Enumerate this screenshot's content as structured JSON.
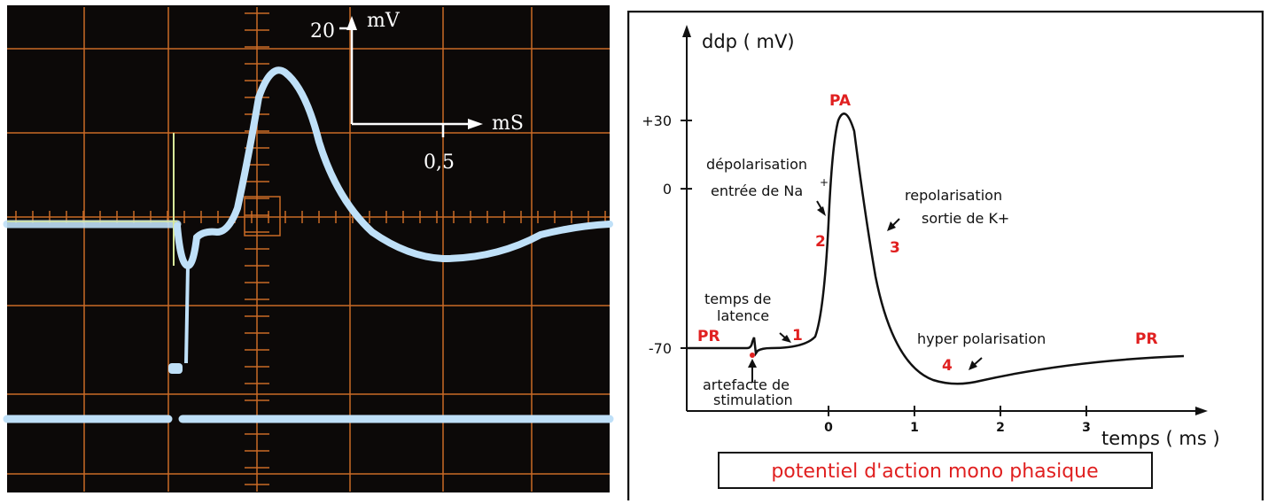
{
  "oscilloscope": {
    "y_scale_value": "20",
    "y_scale_unit": "mV",
    "x_scale_value": "0,5",
    "x_scale_unit": "mS",
    "colors": {
      "screen": "#0c0908",
      "grid": "#c96a26",
      "trace": "#bfe0f8",
      "baseline": "#d8e89a"
    }
  },
  "diagram": {
    "y_axis_label": "ddp ( mV)",
    "x_axis_label": "temps ( ms )",
    "y_ticks": [
      {
        "value": 30,
        "label": "+30"
      },
      {
        "value": 0,
        "label": "0"
      },
      {
        "value": -70,
        "label": "-70"
      }
    ],
    "x_ticks": [
      {
        "value": 0,
        "label": "0"
      },
      {
        "value": 1,
        "label": "1"
      },
      {
        "value": 2,
        "label": "2"
      },
      {
        "value": 3,
        "label": "3"
      }
    ],
    "labels": {
      "pa": "PA",
      "pr_left": "PR",
      "pr_right": "PR",
      "depolarisation": "dépolarisation",
      "entree_na": "entrée de Na",
      "na_plus": "+",
      "repolarisation": "repolarisation",
      "sortie_k": "sortie de K+",
      "temps_de": "temps de",
      "latence": "latence",
      "artefacte": "artefacte de",
      "stimulation": "stimulation",
      "hyper": "hyper polarisation",
      "n1": "1",
      "n2": "2",
      "n3": "3",
      "n4": "4"
    },
    "title": "potentiel d'action mono phasique",
    "colors": {
      "red": "#e02020",
      "ink": "#111111"
    }
  }
}
